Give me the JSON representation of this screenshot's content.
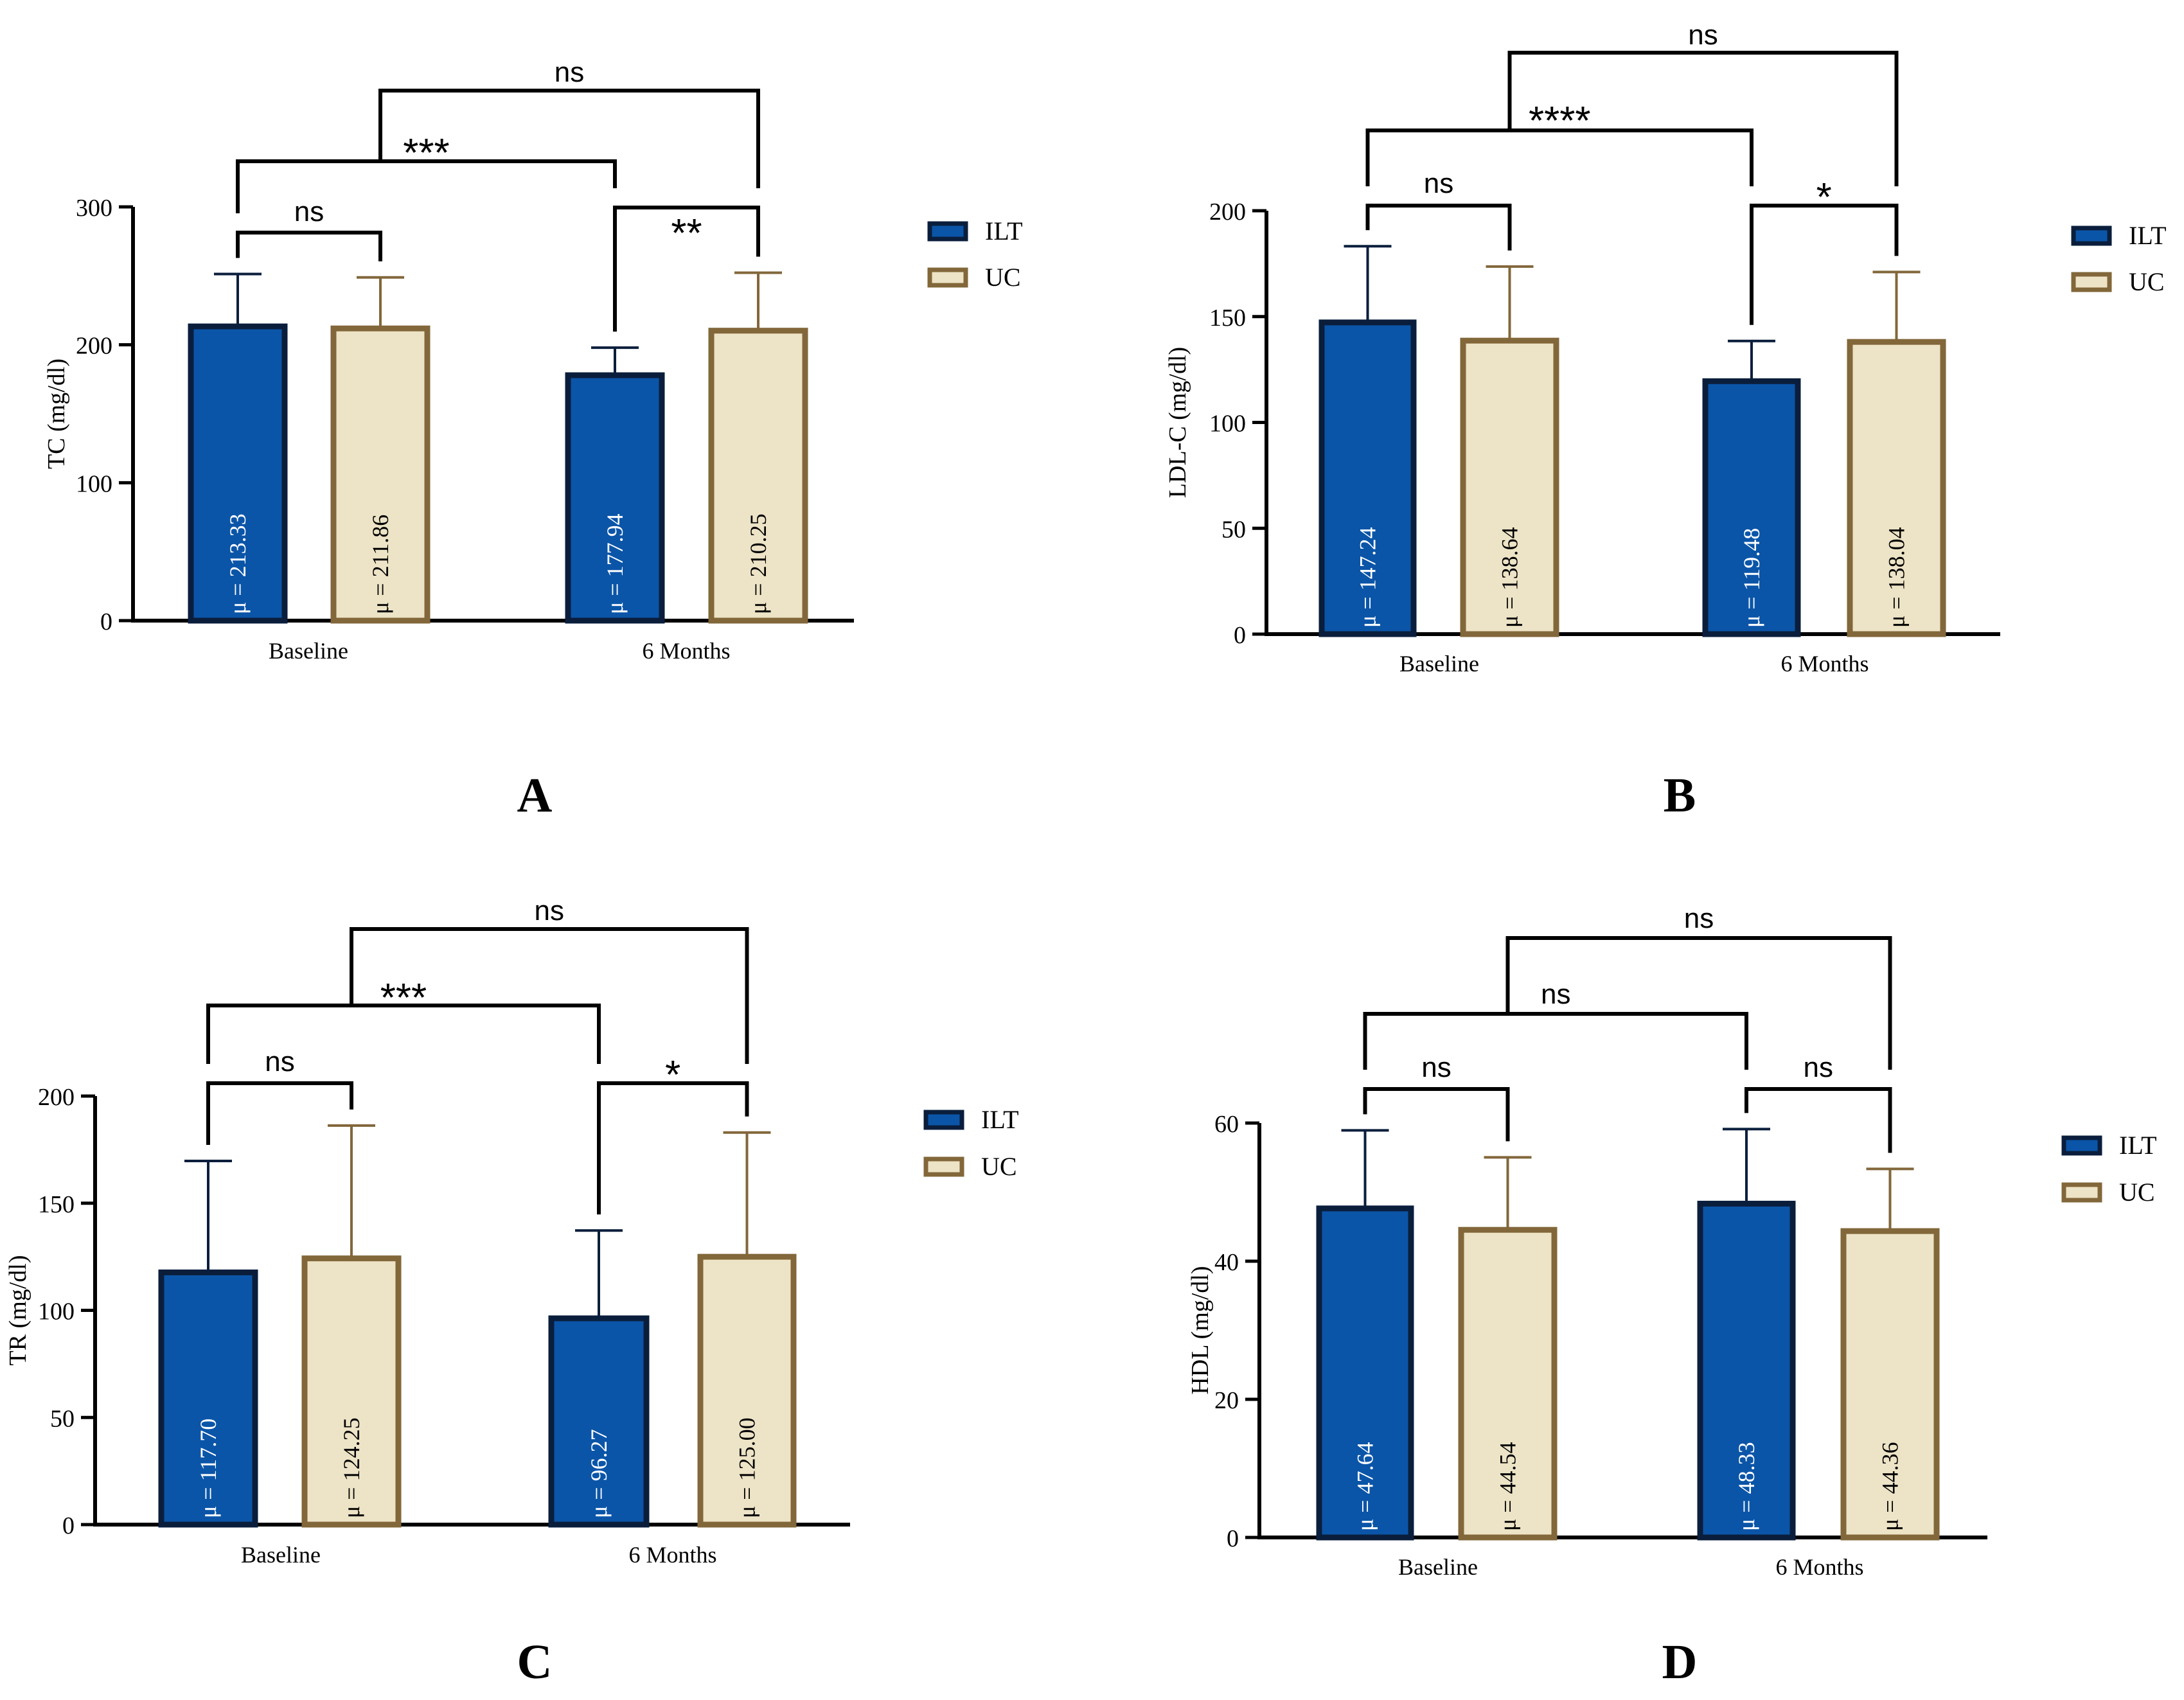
{
  "colors": {
    "ilt_fill": "#0b55a8",
    "ilt_stroke": "#0a1e3c",
    "uc_fill": "#ede3c6",
    "uc_stroke": "#82673a",
    "axis": "#000000"
  },
  "chart_data": [
    {
      "type": "bar",
      "panel_label": "A",
      "ylabel": "TC (mg/dl)",
      "categories": [
        "Baseline",
        "6 Months"
      ],
      "ylim": [
        0,
        300
      ],
      "yticks": [
        0,
        100,
        200,
        300
      ],
      "series": [
        {
          "name": "ILT",
          "values": [
            213.33,
            177.94
          ],
          "errors": [
            38,
            20
          ],
          "labels": [
            "μ = 213.33",
            "μ = 177.94"
          ]
        },
        {
          "name": "UC",
          "values": [
            211.86,
            210.25
          ],
          "errors": [
            37,
            42
          ],
          "labels": [
            "μ = 211.86",
            "μ = 210.25"
          ]
        }
      ],
      "comparisons": [
        {
          "from": [
            0,
            0
          ],
          "to": [
            0,
            1
          ],
          "text": "ns"
        },
        {
          "from": [
            1,
            0
          ],
          "to": [
            1,
            1
          ],
          "text": "**"
        },
        {
          "from": [
            0,
            0
          ],
          "to": [
            1,
            0
          ],
          "text": "***"
        },
        {
          "from": [
            0,
            1
          ],
          "to": [
            1,
            1
          ],
          "text": "ns"
        }
      ]
    },
    {
      "type": "bar",
      "panel_label": "B",
      "ylabel": "LDL-C (mg/dl)",
      "categories": [
        "Baseline",
        "6 Months"
      ],
      "ylim": [
        0,
        200
      ],
      "yticks": [
        0,
        50,
        100,
        150,
        200
      ],
      "series": [
        {
          "name": "ILT",
          "values": [
            147.24,
            119.48
          ],
          "errors": [
            36,
            19
          ],
          "labels": [
            "μ = 147.24",
            "μ = 119.48"
          ]
        },
        {
          "name": "UC",
          "values": [
            138.64,
            138.04
          ],
          "errors": [
            35,
            33
          ],
          "labels": [
            "μ = 138.64",
            "μ = 138.04"
          ]
        }
      ],
      "comparisons": [
        {
          "from": [
            0,
            0
          ],
          "to": [
            0,
            1
          ],
          "text": "ns"
        },
        {
          "from": [
            1,
            0
          ],
          "to": [
            1,
            1
          ],
          "text": "*"
        },
        {
          "from": [
            0,
            0
          ],
          "to": [
            1,
            0
          ],
          "text": "****"
        },
        {
          "from": [
            0,
            1
          ],
          "to": [
            1,
            1
          ],
          "text": "ns"
        }
      ]
    },
    {
      "type": "bar",
      "panel_label": "C",
      "ylabel": "TR (mg/dl)",
      "categories": [
        "Baseline",
        "6 Months"
      ],
      "ylim": [
        0,
        200
      ],
      "yticks": [
        0,
        50,
        100,
        150,
        200
      ],
      "series": [
        {
          "name": "ILT",
          "values": [
            117.7,
            96.27
          ],
          "errors": [
            52,
            41
          ],
          "labels": [
            "μ = 117.70",
            "μ = 96.27"
          ]
        },
        {
          "name": "UC",
          "values": [
            124.25,
            125.0
          ],
          "errors": [
            62,
            58
          ],
          "labels": [
            "μ = 124.25",
            "μ = 125.00"
          ]
        }
      ],
      "comparisons": [
        {
          "from": [
            0,
            0
          ],
          "to": [
            0,
            1
          ],
          "text": "ns"
        },
        {
          "from": [
            1,
            0
          ],
          "to": [
            1,
            1
          ],
          "text": "*"
        },
        {
          "from": [
            0,
            0
          ],
          "to": [
            1,
            0
          ],
          "text": "***"
        },
        {
          "from": [
            0,
            1
          ],
          "to": [
            1,
            1
          ],
          "text": "ns"
        }
      ]
    },
    {
      "type": "bar",
      "panel_label": "D",
      "ylabel": "HDL (mg/dl)",
      "categories": [
        "Baseline",
        "6 Months"
      ],
      "ylim": [
        0,
        60
      ],
      "yticks": [
        0,
        20,
        40,
        60
      ],
      "series": [
        {
          "name": "ILT",
          "values": [
            47.64,
            48.33
          ],
          "errors": [
            11.3,
            10.8
          ],
          "labels": [
            "μ = 47.64",
            "μ = 48.33"
          ]
        },
        {
          "name": "UC",
          "values": [
            44.54,
            44.36
          ],
          "errors": [
            10.5,
            9
          ],
          "labels": [
            "μ = 44.54",
            "μ = 44.36"
          ]
        }
      ],
      "comparisons": [
        {
          "from": [
            0,
            0
          ],
          "to": [
            0,
            1
          ],
          "text": "ns"
        },
        {
          "from": [
            1,
            0
          ],
          "to": [
            1,
            1
          ],
          "text": "ns"
        },
        {
          "from": [
            0,
            0
          ],
          "to": [
            1,
            0
          ],
          "text": "ns"
        },
        {
          "from": [
            0,
            1
          ],
          "to": [
            1,
            1
          ],
          "text": "ns"
        }
      ]
    }
  ]
}
